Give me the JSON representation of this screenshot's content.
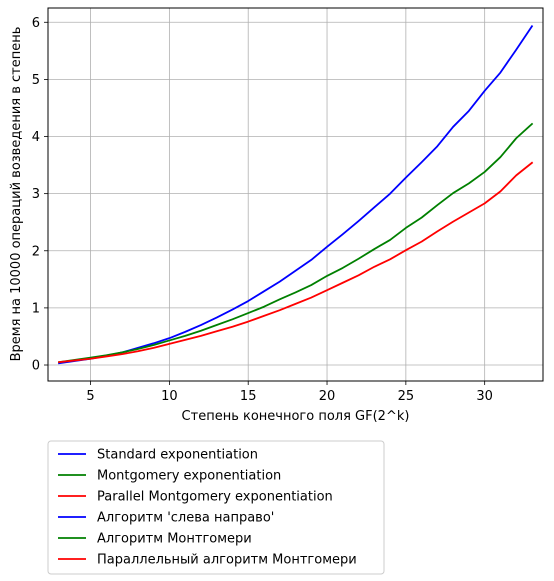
{
  "chart_data": {
    "type": "line",
    "xlabel": "Степень конечного поля GF(2^k)",
    "ylabel": "Время на 10000 операций возведения в степень",
    "xlim": [
      2.3,
      33.7
    ],
    "ylim": [
      -0.28,
      6.25
    ],
    "xticks": [
      5,
      10,
      15,
      20,
      25,
      30
    ],
    "yticks": [
      0,
      1,
      2,
      3,
      4,
      5,
      6
    ],
    "grid": true,
    "legend_position": "below-plot-left",
    "x": [
      3,
      4,
      5,
      6,
      7,
      8,
      9,
      10,
      11,
      12,
      13,
      14,
      15,
      16,
      17,
      18,
      19,
      20,
      21,
      22,
      23,
      24,
      25,
      26,
      27,
      28,
      29,
      30,
      31,
      32,
      33
    ],
    "series": [
      {
        "name": "Standard exponentiation",
        "color": "#0000ff",
        "values": [
          0.03,
          0.07,
          0.11,
          0.16,
          0.22,
          0.3,
          0.38,
          0.47,
          0.58,
          0.7,
          0.83,
          0.97,
          1.12,
          1.29,
          1.46,
          1.65,
          1.84,
          2.07,
          2.29,
          2.52,
          2.76,
          3.0,
          3.28,
          3.55,
          3.83,
          4.17,
          4.45,
          4.8,
          5.12,
          5.52,
          5.93
        ]
      },
      {
        "name": "Montgomery exponentiation",
        "color": "#008000",
        "values": [
          0.05,
          0.09,
          0.13,
          0.17,
          0.22,
          0.28,
          0.35,
          0.43,
          0.51,
          0.6,
          0.7,
          0.8,
          0.91,
          1.02,
          1.15,
          1.27,
          1.4,
          1.56,
          1.7,
          1.86,
          2.03,
          2.19,
          2.4,
          2.58,
          2.8,
          3.01,
          3.18,
          3.38,
          3.64,
          3.97,
          4.22
        ]
      },
      {
        "name": "Parallel Montgomery exponentiation",
        "color": "#ff0000",
        "values": [
          0.05,
          0.08,
          0.11,
          0.15,
          0.19,
          0.24,
          0.3,
          0.37,
          0.44,
          0.51,
          0.59,
          0.67,
          0.76,
          0.86,
          0.96,
          1.07,
          1.18,
          1.31,
          1.44,
          1.57,
          1.72,
          1.85,
          2.01,
          2.16,
          2.34,
          2.51,
          2.67,
          2.83,
          3.04,
          3.32,
          3.54
        ]
      }
    ],
    "legend_entries": [
      {
        "label": "Standard exponentiation",
        "color": "#0000ff"
      },
      {
        "label": "Montgomery exponentiation",
        "color": "#008000"
      },
      {
        "label": "Parallel Montgomery exponentiation",
        "color": "#ff0000"
      },
      {
        "label": "Алгоритм 'слева направо'",
        "color": "#0000ff"
      },
      {
        "label": "Алгоритм Монтгомери",
        "color": "#008000"
      },
      {
        "label": "Параллельный алгоритм Монтгомери",
        "color": "#ff0000"
      }
    ]
  }
}
